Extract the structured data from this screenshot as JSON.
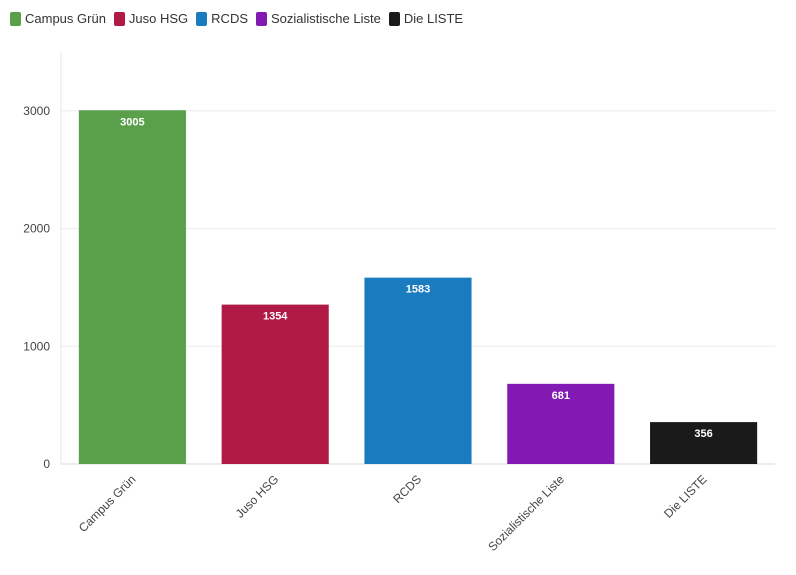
{
  "chart_data": {
    "type": "bar",
    "title": "",
    "xlabel": "",
    "ylabel": "",
    "categories": [
      "Campus Grün",
      "Juso HSG",
      "RCDS",
      "Sozialistische Liste",
      "Die LISTE"
    ],
    "values": [
      3005,
      1354,
      1583,
      681,
      356
    ],
    "colors": [
      "#5aa04b",
      "#b01a45",
      "#1b7bbf",
      "#8219b2",
      "#1a1a1a"
    ],
    "ylim": [
      0,
      3500
    ],
    "yticks": [
      0,
      1000,
      2000,
      3000
    ],
    "grid": true,
    "legend": {
      "placement": "top-left",
      "entries": [
        "Campus Grün",
        "Juso HSG",
        "RCDS",
        "Sozialistische Liste",
        "Die LISTE"
      ]
    }
  }
}
